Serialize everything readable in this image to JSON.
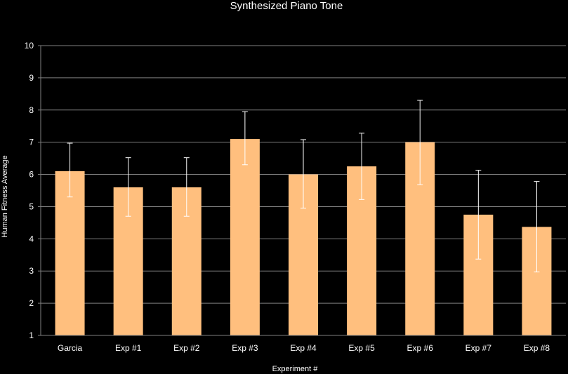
{
  "chart_data": {
    "type": "bar",
    "title": "Synthesized Piano Tone",
    "xlabel": "Experiment #",
    "ylabel": "Human Fitness Average",
    "ylim": [
      1,
      10
    ],
    "yticks": [
      1,
      2,
      3,
      4,
      5,
      6,
      7,
      8,
      9,
      10
    ],
    "grid": true,
    "categories": [
      "Garcia",
      "Exp #1",
      "Exp #2",
      "Exp #3",
      "Exp #4",
      "Exp #5",
      "Exp #6",
      "Exp #7",
      "Exp #8"
    ],
    "values": [
      6.1,
      5.6,
      5.6,
      7.1,
      6.0,
      6.25,
      7.0,
      4.75,
      4.37
    ],
    "error_low": [
      5.3,
      4.7,
      4.7,
      6.3,
      4.95,
      5.22,
      5.68,
      3.37,
      2.97
    ],
    "error_high": [
      6.97,
      6.52,
      6.52,
      7.95,
      7.08,
      7.28,
      8.3,
      6.13,
      5.78
    ],
    "colors": {
      "background": "#000000",
      "bar": "#ffbf7e",
      "grid": "#808080",
      "text": "#ffffff",
      "errorbar": "#ffffff"
    }
  }
}
